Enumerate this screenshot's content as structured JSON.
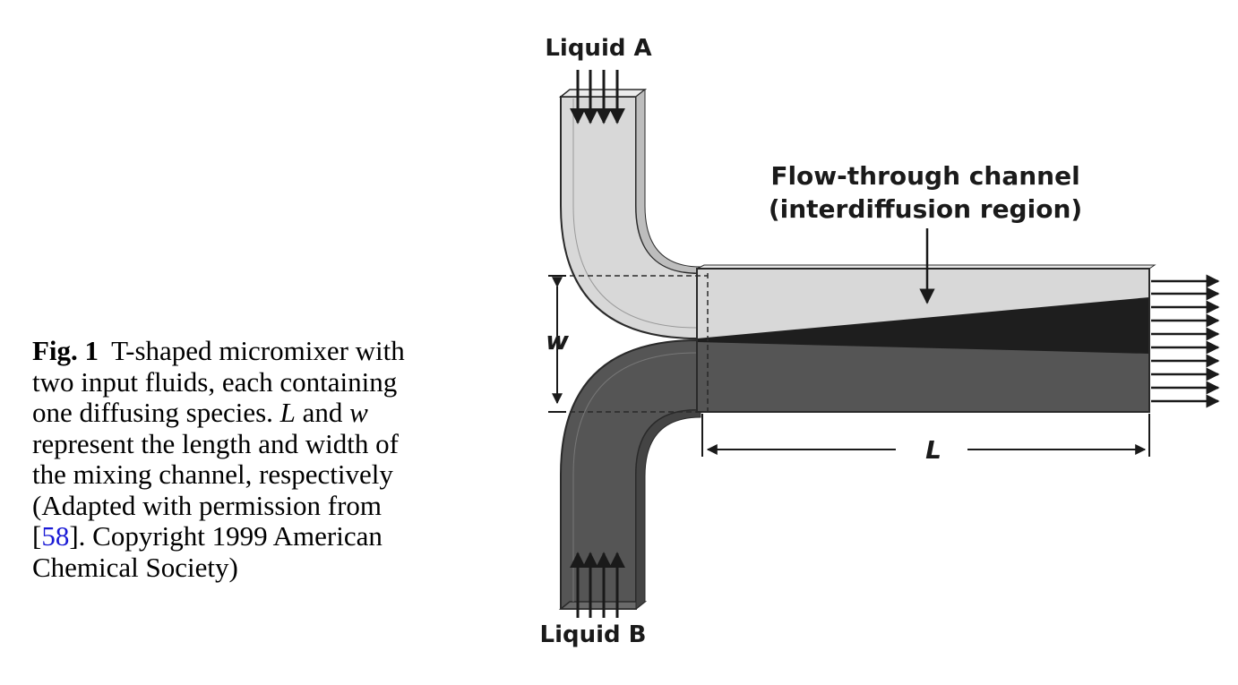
{
  "caption": {
    "fig_label": "Fig. 1",
    "text_1": "T-shaped micromixer with two input fluids, each containing one diffusing species. ",
    "L_symbol": "L",
    "text_2": " and ",
    "w_symbol": "w",
    "text_3": " represent the length and width of the mixing channel, respectively (Adapted with permission from [",
    "ref_number": "58",
    "text_4": "]. Copyright 1999 American Chemical Society)"
  },
  "diagram": {
    "liquid_a_label": "Liquid A",
    "liquid_b_label": "Liquid B",
    "channel_label_line1": "Flow-through channel",
    "channel_label_line2": "(interdiffusion region)",
    "width_label": "w",
    "length_label": "L",
    "colors": {
      "liquid_a": "#d8d8d8",
      "liquid_b": "#555555",
      "mixing_dark": "#1e1e1e",
      "outline": "#2a2a2a"
    }
  }
}
